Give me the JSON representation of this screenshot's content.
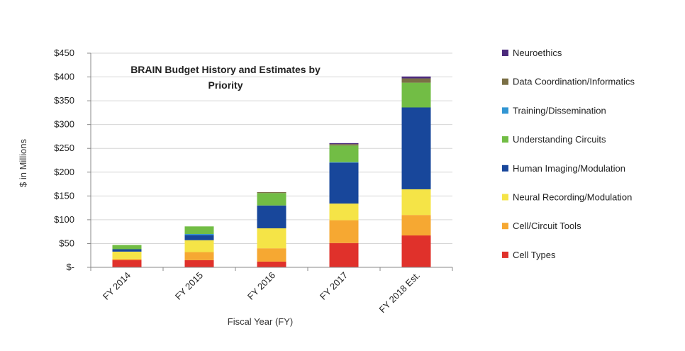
{
  "chart_data": {
    "type": "bar",
    "stacked": true,
    "title_lines": [
      "BRAIN Budget History and Estimates by",
      "Priority"
    ],
    "xlabel": "Fiscal Year (FY)",
    "ylabel": "$ in Millions",
    "ylim": [
      0,
      450
    ],
    "yticks": [
      0,
      50,
      100,
      150,
      200,
      250,
      300,
      350,
      400,
      450
    ],
    "ytick_labels": [
      "$-",
      "$50",
      "$100",
      "$150",
      "$200",
      "$250",
      "$300",
      "$350",
      "$400",
      "$450"
    ],
    "categories": [
      "FY 2014",
      "FY 2015",
      "FY 2016",
      "FY 2017",
      "FY 2018 Est."
    ],
    "grid": true,
    "legend_position": "right",
    "series": [
      {
        "name": "Cell Types",
        "color": "#e0312b",
        "values": [
          15,
          15,
          12,
          51,
          67
        ]
      },
      {
        "name": "Cell/Circuit Tools",
        "color": "#f6a832",
        "values": [
          3,
          17,
          28,
          48,
          43
        ]
      },
      {
        "name": "Neural Recording/Modulation",
        "color": "#f5e447",
        "values": [
          15,
          25,
          42,
          35,
          54
        ]
      },
      {
        "name": "Human Imaging/Modulation",
        "color": "#18479b",
        "values": [
          5,
          11,
          48,
          86,
          172
        ]
      },
      {
        "name": "Training/Dissemination",
        "color": "#3296d3",
        "values": [
          0,
          2,
          0,
          1,
          0
        ]
      },
      {
        "name": "Understanding Circuits",
        "color": "#72bd45",
        "values": [
          9,
          16,
          26,
          35,
          52
        ]
      },
      {
        "name": "Data Coordination/Informatics",
        "color": "#7a6f45",
        "values": [
          0,
          0,
          2,
          3,
          9
        ]
      },
      {
        "name": "Neuroethics",
        "color": "#4b2a7c",
        "values": [
          0,
          0,
          0,
          2,
          4
        ]
      }
    ],
    "legend_order": [
      "Neuroethics",
      "Data Coordination/Informatics",
      "Training/Dissemination",
      "Understanding Circuits",
      "Human Imaging/Modulation",
      "Neural Recording/Modulation",
      "Cell/Circuit Tools",
      "Cell Types"
    ]
  }
}
